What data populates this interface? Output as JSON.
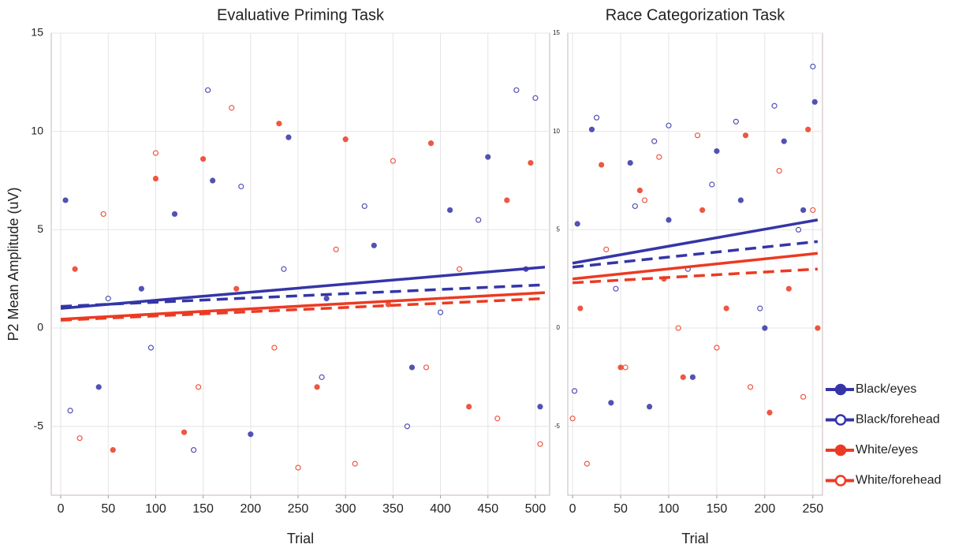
{
  "chart_data": [
    {
      "type": "scatter",
      "title": "Evaluative Priming Task",
      "x_label": "Trial",
      "y_label": "P2 Mean Amplitude (uV)",
      "xlim": [
        -10,
        515
      ],
      "ylim": [
        -8.5,
        15
      ],
      "xticks": [
        0,
        50,
        100,
        150,
        200,
        250,
        300,
        350,
        400,
        450,
        500
      ],
      "yticks": [
        -5,
        0,
        5,
        10,
        15
      ],
      "grid": true,
      "series": [
        {
          "name": "Black/eyes",
          "color": "#3535a8",
          "filled": true,
          "line_style": "solid",
          "x": [
            5,
            40,
            85,
            120,
            160,
            200,
            240,
            280,
            330,
            370,
            410,
            450,
            490,
            505
          ],
          "y": [
            6.5,
            -3,
            2,
            5.8,
            7.5,
            -5.4,
            9.7,
            1.5,
            4.2,
            -2,
            6,
            8.7,
            3,
            -4
          ],
          "fit": {
            "x": [
              0,
              510
            ],
            "y": [
              1.0,
              3.1
            ]
          }
        },
        {
          "name": "Black/forehead",
          "color": "#3535a8",
          "filled": false,
          "line_style": "dashed",
          "x": [
            10,
            50,
            95,
            140,
            155,
            190,
            235,
            275,
            320,
            365,
            400,
            440,
            480,
            500
          ],
          "y": [
            -4.2,
            1.5,
            -1,
            -6.2,
            12.1,
            7.2,
            3,
            -2.5,
            6.2,
            -5,
            0.8,
            5.5,
            12.1,
            11.7
          ],
          "fit": {
            "x": [
              0,
              510
            ],
            "y": [
              1.1,
              2.2
            ]
          }
        },
        {
          "name": "White/eyes",
          "color": "#ec3a22",
          "filled": true,
          "line_style": "solid",
          "x": [
            15,
            55,
            100,
            130,
            150,
            185,
            230,
            270,
            300,
            345,
            390,
            430,
            470,
            495
          ],
          "y": [
            3,
            -6.2,
            7.6,
            -5.3,
            8.6,
            2,
            10.4,
            -3,
            9.6,
            1.2,
            9.4,
            -4,
            6.5,
            8.4
          ],
          "fit": {
            "x": [
              0,
              510
            ],
            "y": [
              0.45,
              1.8
            ]
          }
        },
        {
          "name": "White/forehead",
          "color": "#ec3a22",
          "filled": false,
          "line_style": "dashed",
          "x": [
            20,
            45,
            100,
            145,
            180,
            225,
            250,
            290,
            310,
            350,
            385,
            420,
            460,
            505
          ],
          "y": [
            -5.6,
            5.8,
            8.9,
            -3,
            11.2,
            -1,
            -7.1,
            4,
            -6.9,
            8.5,
            -2,
            3,
            -4.6,
            -5.9
          ],
          "fit": {
            "x": [
              0,
              510
            ],
            "y": [
              0.4,
              1.5
            ]
          }
        }
      ]
    },
    {
      "type": "scatter",
      "title": "Race Categorization Task",
      "x_label": "Trial",
      "xlim": [
        -5,
        260
      ],
      "ylim": [
        -8.5,
        15
      ],
      "xticks": [
        0,
        50,
        100,
        150,
        200,
        250
      ],
      "yticks": [
        -5,
        0,
        5,
        10,
        15
      ],
      "grid": true,
      "series": [
        {
          "color": "#3535a8",
          "filled": true,
          "line_style": "solid",
          "x": [
            5,
            20,
            40,
            60,
            80,
            100,
            125,
            150,
            175,
            200,
            220,
            240,
            252
          ],
          "y": [
            5.3,
            10.1,
            -3.8,
            8.4,
            -4,
            5.5,
            -2.5,
            9,
            6.5,
            0,
            9.5,
            6,
            11.5
          ],
          "fit": {
            "x": [
              0,
              255
            ],
            "y": [
              3.3,
              5.5
            ]
          }
        },
        {
          "color": "#3535a8",
          "filled": false,
          "line_style": "dashed",
          "x": [
            2,
            25,
            45,
            65,
            85,
            100,
            120,
            145,
            170,
            195,
            210,
            235,
            250
          ],
          "y": [
            -3.2,
            10.7,
            2,
            6.2,
            9.5,
            10.3,
            3,
            7.3,
            10.5,
            1,
            11.3,
            5,
            13.3
          ],
          "fit": {
            "x": [
              0,
              255
            ],
            "y": [
              3.1,
              4.4
            ]
          }
        },
        {
          "color": "#ec3a22",
          "filled": true,
          "line_style": "solid",
          "x": [
            8,
            30,
            50,
            70,
            95,
            115,
            135,
            160,
            180,
            205,
            225,
            245,
            255
          ],
          "y": [
            1,
            8.3,
            -2,
            7,
            2.5,
            -2.5,
            6,
            1,
            9.8,
            -4.3,
            2,
            10.1,
            0
          ],
          "fit": {
            "x": [
              0,
              255
            ],
            "y": [
              2.5,
              3.8
            ]
          }
        },
        {
          "color": "#ec3a22",
          "filled": false,
          "line_style": "dashed",
          "x": [
            0,
            15,
            35,
            55,
            75,
            90,
            110,
            130,
            150,
            185,
            215,
            240,
            250
          ],
          "y": [
            -4.6,
            -6.9,
            4,
            -2,
            6.5,
            8.7,
            0,
            9.8,
            -1,
            -3,
            8,
            -3.5,
            6
          ],
          "fit": {
            "x": [
              0,
              255
            ],
            "y": [
              2.3,
              3.0
            ]
          }
        }
      ]
    }
  ]
}
